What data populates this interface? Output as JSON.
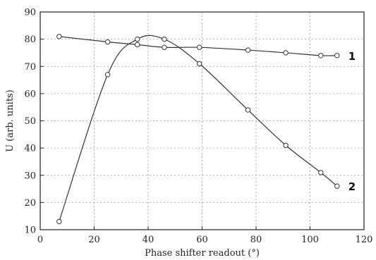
{
  "chart_data": {
    "type": "line",
    "xlabel": "Phase shifter readout (°)",
    "ylabel": "U (arb. units)",
    "xlim": [
      0,
      120
    ],
    "ylim": [
      10,
      90
    ],
    "x_ticks": [
      0,
      20,
      40,
      60,
      80,
      100,
      120
    ],
    "y_ticks": [
      10,
      20,
      30,
      40,
      50,
      60,
      70,
      80,
      90
    ],
    "grid": true,
    "series": [
      {
        "name": "1",
        "x": [
          7,
          25,
          36,
          46,
          59,
          77,
          91,
          104,
          110
        ],
        "y": [
          81,
          79,
          78,
          77,
          77,
          76,
          75,
          74,
          74
        ]
      },
      {
        "name": "2",
        "x": [
          7,
          25,
          36,
          46,
          59,
          77,
          91,
          104,
          110
        ],
        "y": [
          13,
          67,
          80,
          80,
          71,
          54,
          41,
          31,
          26
        ]
      }
    ]
  }
}
